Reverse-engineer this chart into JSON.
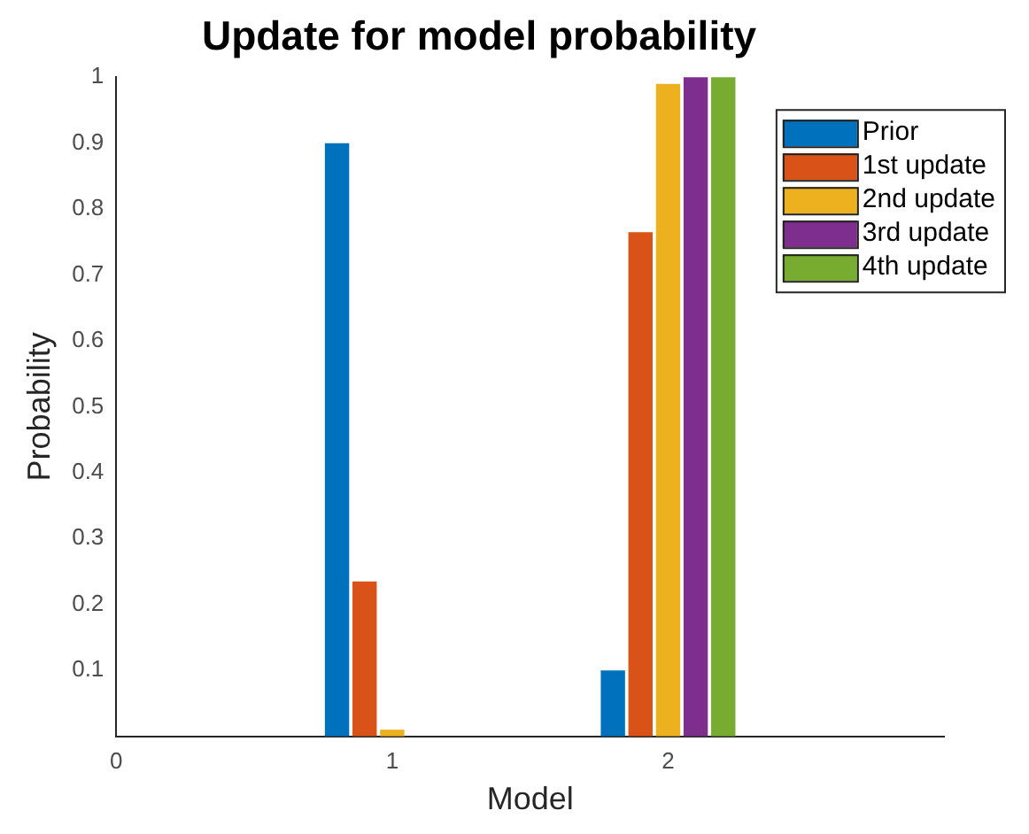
{
  "chart_data": {
    "type": "bar",
    "title": "Update for model probability",
    "xlabel": "Model",
    "ylabel": "Probability",
    "x": [
      1,
      2
    ],
    "xlim": [
      0,
      3
    ],
    "xticks": [
      0,
      1,
      2
    ],
    "ylim": [
      0,
      1
    ],
    "yticks": [
      0.1,
      0.2,
      0.3,
      0.4,
      0.5,
      0.6,
      0.7,
      0.8,
      0.9,
      1
    ],
    "series": [
      {
        "name": "Prior",
        "color": "#0072bd",
        "values": [
          0.9,
          0.1
        ]
      },
      {
        "name": "1st update",
        "color": "#d95319",
        "values": [
          0.235,
          0.765
        ]
      },
      {
        "name": "2nd update",
        "color": "#edb120",
        "values": [
          0.01,
          0.99
        ]
      },
      {
        "name": "3rd update",
        "color": "#7e2f8e",
        "values": [
          0,
          1
        ]
      },
      {
        "name": "4th update",
        "color": "#77ac30",
        "values": [
          0,
          1
        ]
      }
    ],
    "legend": "top right",
    "grid": false
  }
}
